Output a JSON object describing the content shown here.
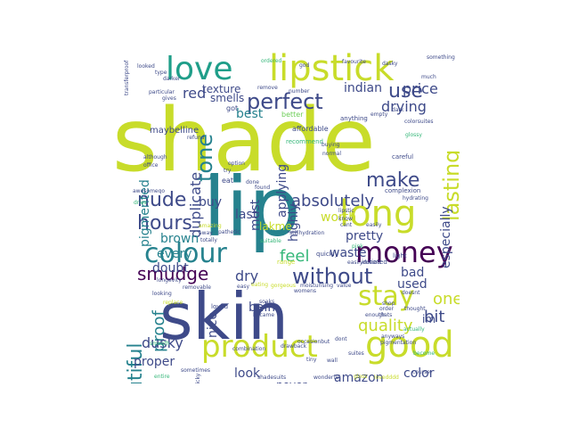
{
  "image_type": "word cloud",
  "palette": [
    "#c8dc2a",
    "#26828e",
    "#3e4a89",
    "#440154",
    "#35b779",
    "#1f9e89",
    "#482878",
    "#6ece58"
  ],
  "words": [
    {
      "text": "shade",
      "color": "#c8dc2a"
    },
    {
      "text": "lip",
      "color": "#26828e"
    },
    {
      "text": "skin",
      "color": "#3e4a89"
    },
    {
      "text": "lipstick",
      "color": "#c8dc2a"
    },
    {
      "text": "love",
      "color": "#1f9e89"
    },
    {
      "text": "good",
      "color": "#c8dc2a"
    },
    {
      "text": "product",
      "color": "#c8dc2a"
    },
    {
      "text": "long",
      "color": "#c8dc2a"
    },
    {
      "text": "money",
      "color": "#440154"
    },
    {
      "text": "colour",
      "color": "#26828e"
    },
    {
      "text": "stay",
      "color": "#c8dc2a"
    },
    {
      "text": "perfect",
      "color": "#3e4a89"
    },
    {
      "text": "without",
      "color": "#3e4a89"
    },
    {
      "text": "nude",
      "color": "#3e4a89"
    },
    {
      "text": "hours",
      "color": "#3e4a89"
    },
    {
      "text": "smudge",
      "color": "#440154"
    },
    {
      "text": "tone",
      "color": "#26828e"
    },
    {
      "text": "use",
      "color": "#3e4a89"
    },
    {
      "text": "make",
      "color": "#3e4a89"
    },
    {
      "text": "lasting",
      "color": "#c8dc2a"
    },
    {
      "text": "beautiful",
      "color": "#26828e"
    },
    {
      "text": "proof",
      "color": "#26828e"
    },
    {
      "text": "quality",
      "color": "#c8dc2a"
    },
    {
      "text": "bit",
      "color": "#3e4a89"
    },
    {
      "text": "one",
      "color": "#c8dc2a"
    },
    {
      "text": "absolutely",
      "color": "#3e4a89"
    },
    {
      "text": "feel",
      "color": "#35b779"
    },
    {
      "text": "dry",
      "color": "#3e4a89"
    },
    {
      "text": "dusky",
      "color": "#3e4a89"
    },
    {
      "text": "price",
      "color": "#3e4a89"
    },
    {
      "text": "drying",
      "color": "#3e4a89"
    },
    {
      "text": "red",
      "color": "#3e4a89"
    },
    {
      "text": "pigmented",
      "color": "#26828e"
    },
    {
      "text": "duplicate",
      "color": "#3e4a89"
    },
    {
      "text": "smells",
      "color": "#3e4a89"
    },
    {
      "text": "texture",
      "color": "#3e4a89"
    },
    {
      "text": "indian",
      "color": "#3e4a89"
    },
    {
      "text": "best",
      "color": "#26828e"
    },
    {
      "text": "applying",
      "color": "#3e4a89"
    },
    {
      "text": "pretty",
      "color": "#3e4a89"
    },
    {
      "text": "worth",
      "color": "#c8dc2a"
    },
    {
      "text": "waste",
      "color": "#3e4a89"
    },
    {
      "text": "used",
      "color": "#3e4a89"
    },
    {
      "text": "bad",
      "color": "#3e4a89"
    },
    {
      "text": "especially",
      "color": "#3e4a89"
    },
    {
      "text": "highly",
      "color": "#3e4a89"
    },
    {
      "text": "last",
      "color": "#3e4a89"
    },
    {
      "text": "lakme",
      "color": "#c8dc2a"
    },
    {
      "text": "brown",
      "color": "#26828e"
    },
    {
      "text": "every",
      "color": "#26828e"
    },
    {
      "text": "doubt",
      "color": "#3e4a89"
    },
    {
      "text": "buy",
      "color": "#3e4a89"
    },
    {
      "text": "must",
      "color": "#3e4a89"
    },
    {
      "text": "balm",
      "color": "#3e4a89"
    },
    {
      "text": "nice",
      "color": "#3e4a89"
    },
    {
      "text": "look",
      "color": "#3e4a89"
    },
    {
      "text": "never",
      "color": "#3e4a89"
    },
    {
      "text": "amazon",
      "color": "#3e4a89"
    },
    {
      "text": "proper",
      "color": "#3e4a89"
    },
    {
      "text": "color",
      "color": "#3e4a89"
    },
    {
      "text": "maybelline",
      "color": "#3e4a89"
    },
    {
      "text": "im",
      "color": "#3e4a89"
    },
    {
      "text": "recommend",
      "color": "#35b779"
    },
    {
      "text": "ordered",
      "color": "#35b779"
    },
    {
      "text": "favourite",
      "color": "#3e4a89"
    },
    {
      "text": "something",
      "color": "#3e4a89"
    },
    {
      "text": "god",
      "color": "#3e4a89"
    },
    {
      "text": "dasky",
      "color": "#3e4a89"
    },
    {
      "text": "dark",
      "color": "#3e4a89"
    },
    {
      "text": "anything",
      "color": "#3e4a89"
    },
    {
      "text": "got",
      "color": "#3e4a89"
    },
    {
      "text": "better",
      "color": "#6ece58"
    },
    {
      "text": "affordable",
      "color": "#3e4a89"
    },
    {
      "text": "buying",
      "color": "#3e4a89"
    },
    {
      "text": "normal",
      "color": "#3e4a89"
    },
    {
      "text": "careful",
      "color": "#3e4a89"
    },
    {
      "text": "empty",
      "color": "#3e4a89"
    },
    {
      "text": "complexion",
      "color": "#3e4a89"
    },
    {
      "text": "light",
      "color": "#3e4a89"
    },
    {
      "text": "initiated",
      "color": "#3e4a89"
    },
    {
      "text": "quickly",
      "color": "#3e4a89"
    },
    {
      "text": "range",
      "color": "#c8dc2a"
    },
    {
      "text": "totally",
      "color": "#3e4a89"
    },
    {
      "text": "longevity",
      "color": "#3e4a89"
    },
    {
      "text": "looking",
      "color": "#3e4a89"
    },
    {
      "text": "loved",
      "color": "#3e4a89"
    },
    {
      "text": "easy",
      "color": "#3e4a89"
    },
    {
      "text": "eating",
      "color": "#c8dc2a"
    },
    {
      "text": "gorgeous",
      "color": "#c8dc2a"
    },
    {
      "text": "moisturising",
      "color": "#3e4a89"
    },
    {
      "text": "value",
      "color": "#3e4a89"
    },
    {
      "text": "womens",
      "color": "#3e4a89"
    },
    {
      "text": "doesnt",
      "color": "#3e4a89"
    },
    {
      "text": "order",
      "color": "#3e4a89"
    },
    {
      "text": "thats",
      "color": "#3e4a89"
    },
    {
      "text": "enough",
      "color": "#3e4a89"
    },
    {
      "text": "soaks",
      "color": "#3e4a89"
    },
    {
      "text": "dont",
      "color": "#3e4a89"
    },
    {
      "text": "combination",
      "color": "#3e4a89"
    },
    {
      "text": "occasionbut",
      "color": "#3e4a89"
    },
    {
      "text": "pigmentation",
      "color": "#3e4a89"
    },
    {
      "text": "suites",
      "color": "#3e4a89"
    },
    {
      "text": "wonderful",
      "color": "#3e4a89"
    },
    {
      "text": "gloss",
      "color": "#c8dc2a"
    },
    {
      "text": "lovedddd",
      "color": "#c8dc2a"
    },
    {
      "text": "shadesuits",
      "color": "#3e4a89"
    },
    {
      "text": "sometimes",
      "color": "#3e4a89"
    },
    {
      "text": "entire",
      "color": "#35b779"
    },
    {
      "text": "sticky",
      "color": "#3e4a89"
    },
    {
      "text": "smooth",
      "color": "#35b779"
    },
    {
      "text": "removable",
      "color": "#3e4a89"
    },
    {
      "text": "replace",
      "color": "#c8dc2a"
    },
    {
      "text": "drawback",
      "color": "#3e4a89"
    },
    {
      "text": "became",
      "color": "#3e4a89"
    },
    {
      "text": "awesomeqo",
      "color": "#3e4a89"
    },
    {
      "text": "dries",
      "color": "#35b779"
    },
    {
      "text": "although",
      "color": "#3e4a89"
    },
    {
      "text": "refund",
      "color": "#3e4a89"
    },
    {
      "text": "gives",
      "color": "#3e4a89"
    },
    {
      "text": "particular",
      "color": "#3e4a89"
    },
    {
      "text": "darker",
      "color": "#3e4a89"
    },
    {
      "text": "type",
      "color": "#3e4a89"
    },
    {
      "text": "transferproof",
      "color": "#3e4a89"
    },
    {
      "text": "looked",
      "color": "#3e4a89"
    },
    {
      "text": "remove",
      "color": "#3e4a89"
    },
    {
      "text": "number",
      "color": "#3e4a89"
    },
    {
      "text": "much",
      "color": "#3e4a89"
    },
    {
      "text": "colorsuites",
      "color": "#3e4a89"
    },
    {
      "text": "shop",
      "color": "#3e4a89"
    },
    {
      "text": "pathetic",
      "color": "#3e4a89"
    },
    {
      "text": "stillhydration",
      "color": "#3e4a89"
    },
    {
      "text": "amazing",
      "color": "#c8dc2a"
    },
    {
      "text": "away",
      "color": "#3e4a89"
    },
    {
      "text": "suitable",
      "color": "#35b779"
    },
    {
      "text": "done",
      "color": "#3e4a89"
    },
    {
      "text": "found",
      "color": "#3e4a89"
    },
    {
      "text": "easily",
      "color": "#3e4a89"
    },
    {
      "text": "know",
      "color": "#3e4a89"
    },
    {
      "text": "cant",
      "color": "#3e4a89"
    },
    {
      "text": "thought",
      "color": "#3e4a89"
    },
    {
      "text": "actually",
      "color": "#35b779"
    },
    {
      "text": "anyways",
      "color": "#3e4a89"
    },
    {
      "text": "hydrating",
      "color": "#3e4a89"
    },
    {
      "text": "office",
      "color": "#3e4a89"
    },
    {
      "text": "option",
      "color": "#3e4a89"
    },
    {
      "text": "try",
      "color": "#3e4a89"
    },
    {
      "text": "glossy",
      "color": "#35b779"
    },
    {
      "text": "tiny",
      "color": "#3e4a89"
    },
    {
      "text": "wall",
      "color": "#3e4a89"
    },
    {
      "text": "course",
      "color": "#3e4a89"
    },
    {
      "text": "become",
      "color": "#35b779"
    },
    {
      "text": "lipstic",
      "color": "#3e4a89"
    },
    {
      "text": "easilydoesnt",
      "color": "#3e4a89"
    },
    {
      "text": "pink",
      "color": "#35b779"
    },
    {
      "text": "eat",
      "color": "#3e4a89"
    }
  ]
}
